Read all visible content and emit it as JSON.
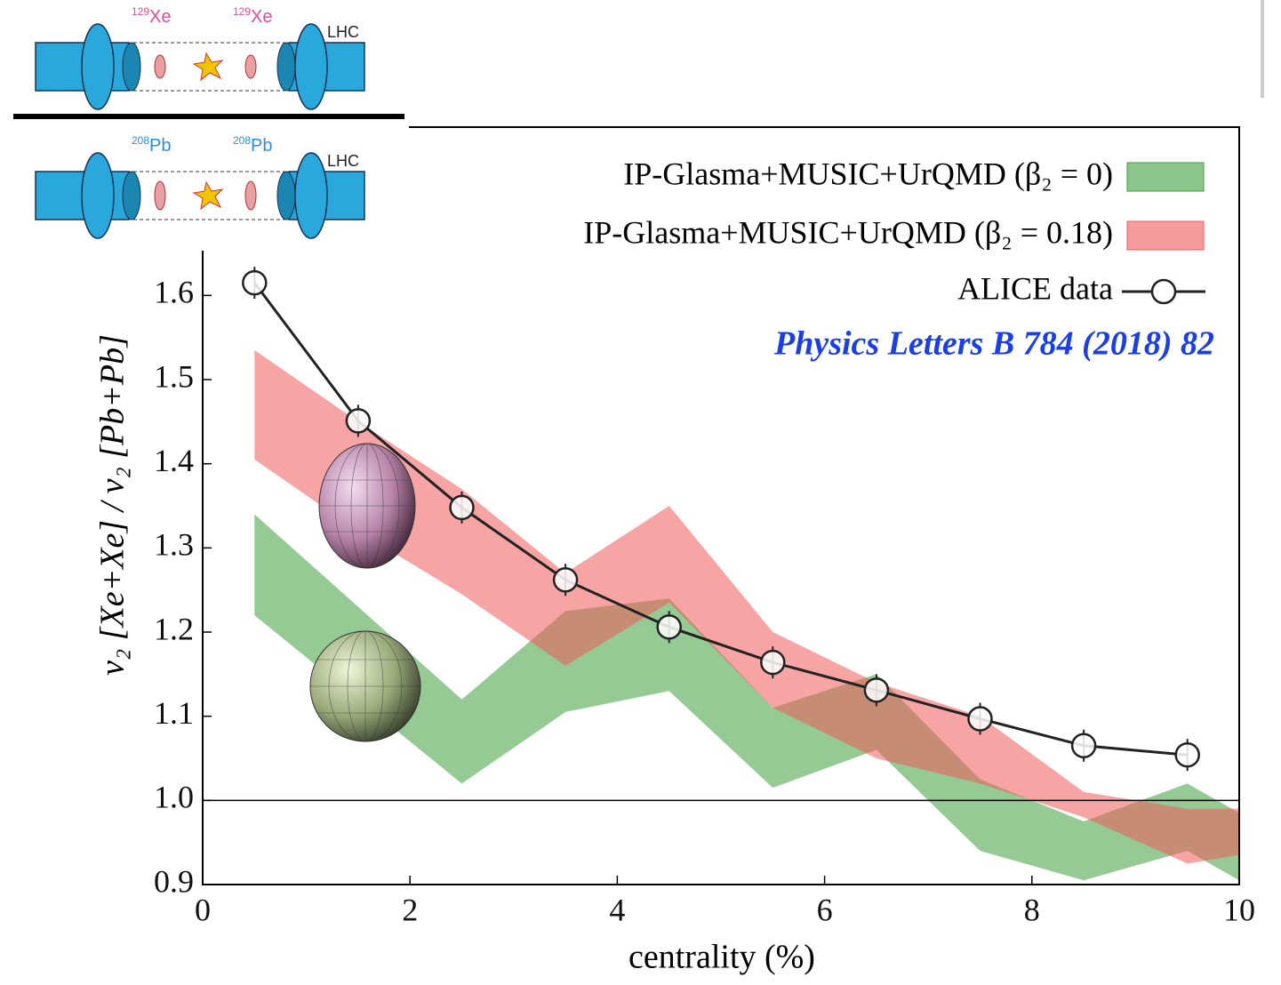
{
  "insets": [
    {
      "left_mass": "129",
      "left_element": "Xe",
      "right_mass": "129",
      "right_element": "Xe",
      "machine": "LHC"
    },
    {
      "left_mass": "208",
      "left_element": "Pb",
      "right_mass": "208",
      "right_element": "Pb",
      "machine": "LHC"
    }
  ],
  "chart_data": {
    "type": "line",
    "x_label": "centrality (%)",
    "y_label": "v₂ [Xe+Xe] / v₂ [Pb+Pb]",
    "annotation": "Physics Letters B 784 (2018) 82",
    "xlim": [
      0,
      10
    ],
    "ylim": [
      0.9,
      1.8
    ],
    "xticks": [
      0,
      2,
      4,
      6,
      8,
      10
    ],
    "yticks": [
      0.9,
      {
        "value": 1.0,
        "label": "1.0"
      },
      1.1,
      1.2,
      1.3,
      1.4,
      1.5,
      1.6
    ],
    "hline": 1,
    "legend": "upper right",
    "series": [
      {
        "name": "IP-Glasma+MUSIC+UrQMD (β₂ = 0)",
        "type": "band",
        "color": "#3e9e3e",
        "x": [
          0.5,
          1.5,
          2.5,
          3.5,
          4.5,
          5.5,
          6.5,
          7.5,
          8.5,
          9.5,
          10
        ],
        "upper": [
          1.34,
          1.23,
          1.12,
          1.225,
          1.24,
          1.11,
          1.15,
          1.025,
          0.975,
          1.02,
          0.985
        ],
        "lower": [
          1.22,
          1.12,
          1.02,
          1.105,
          1.13,
          1.015,
          1.06,
          0.94,
          0.905,
          0.94,
          0.905
        ]
      },
      {
        "name": "IP-Glasma+MUSIC+UrQMD (β₂ = 0.18)",
        "type": "band",
        "color": "#f05a5a",
        "x": [
          0.5,
          1.5,
          2.5,
          3.5,
          4.5,
          5.5,
          6.5,
          7.5,
          8.5,
          9.5,
          10
        ],
        "upper": [
          1.535,
          1.45,
          1.37,
          1.27,
          1.35,
          1.2,
          1.14,
          1.1,
          1.01,
          0.99,
          0.99
        ],
        "lower": [
          1.405,
          1.32,
          1.245,
          1.16,
          1.235,
          1.11,
          1.05,
          1.02,
          0.98,
          0.925,
          0.935
        ]
      },
      {
        "name": "ALICE data",
        "type": "line",
        "color": "#222222",
        "x": [
          0.5,
          1.5,
          2.5,
          3.5,
          4.5,
          5.5,
          6.5,
          7.5,
          8.5,
          9.5
        ],
        "values": [
          1.615,
          1.451,
          1.348,
          1.262,
          1.206,
          1.164,
          1.131,
          1.097,
          1.065,
          1.054
        ]
      }
    ]
  }
}
